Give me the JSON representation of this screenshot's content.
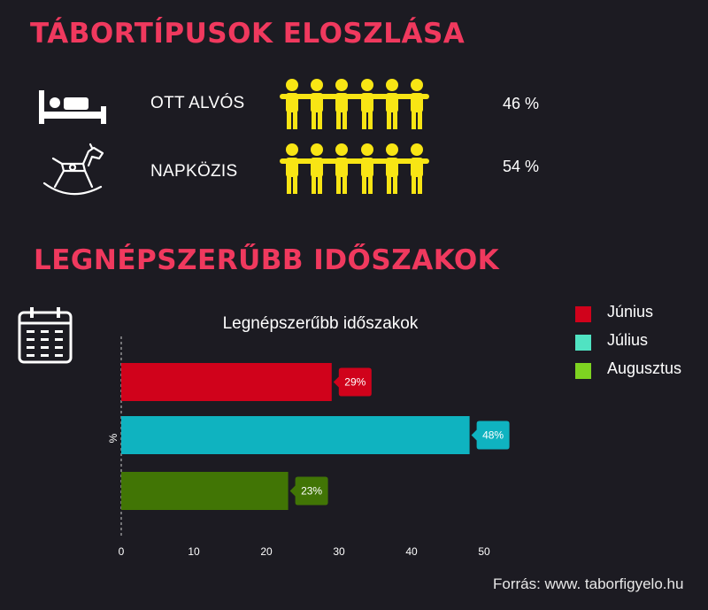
{
  "section1": {
    "title": "TÁBORTÍPUSOK ELOSZLÁSA",
    "rows": [
      {
        "label": "OTT ALVÓS",
        "value": "46 %",
        "icon": "bed-icon",
        "people_count": 6
      },
      {
        "label": "NAPKÖZIS",
        "value": "54 %",
        "icon": "rocking-horse-icon",
        "people_count": 6
      }
    ],
    "people_color": "#f8e514"
  },
  "section2": {
    "title": "LEGNÉPSZERŰBB IDŐSZAKOK",
    "icon": "calendar-icon"
  },
  "chart_data": {
    "type": "bar",
    "orientation": "horizontal",
    "title": "Legnépszerűbb időszakok",
    "ylabel": "%",
    "xlabel": "",
    "categories": [
      "Június",
      "Július",
      "Augusztus"
    ],
    "values": [
      29,
      48,
      23
    ],
    "data_labels": [
      "29%",
      "48%",
      "23%"
    ],
    "colors": [
      "#d0021b",
      "#0fb3c0",
      "#417505"
    ],
    "xlim": [
      0,
      50
    ],
    "xticks": [
      "0",
      "10",
      "20",
      "30",
      "40",
      "50"
    ],
    "grid": false,
    "legend_position": "right"
  },
  "legend": {
    "items": [
      {
        "label": "Június",
        "color": "#d0021b"
      },
      {
        "label": "Július",
        "color": "#50e3c2"
      },
      {
        "label": "Augusztus",
        "color": "#7ed321"
      }
    ]
  },
  "source": "Forrás: www. taborfigyelo.hu"
}
